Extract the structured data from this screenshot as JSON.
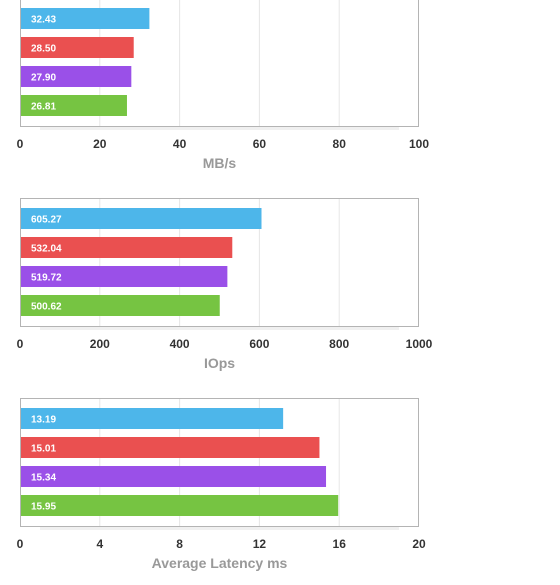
{
  "chart_data": [
    {
      "type": "bar",
      "orientation": "horizontal",
      "xlabel": "MB/s",
      "xlim": [
        0,
        100
      ],
      "xticks": [
        "0",
        "20",
        "40",
        "60",
        "80",
        "100"
      ],
      "grid": true,
      "values": [
        32.43,
        28.5,
        27.9,
        26.81
      ],
      "value_labels": [
        "32.43",
        "28.50",
        "27.90",
        "26.81"
      ],
      "colors": [
        "#4db6ea",
        "#ea5050",
        "#9a50e8",
        "#76c442"
      ]
    },
    {
      "type": "bar",
      "orientation": "horizontal",
      "xlabel": "IOps",
      "xlim": [
        0,
        1000
      ],
      "xticks": [
        "0",
        "200",
        "400",
        "600",
        "800",
        "1000"
      ],
      "grid": true,
      "values": [
        605.27,
        532.04,
        519.72,
        500.62
      ],
      "value_labels": [
        "605.27",
        "532.04",
        "519.72",
        "500.62"
      ],
      "colors": [
        "#4db6ea",
        "#ea5050",
        "#9a50e8",
        "#76c442"
      ]
    },
    {
      "type": "bar",
      "orientation": "horizontal",
      "xlabel": "Average Latency ms",
      "xlim": [
        0,
        20
      ],
      "xticks": [
        "0",
        "4",
        "8",
        "12",
        "16",
        "20"
      ],
      "grid": true,
      "values": [
        13.19,
        15.01,
        15.34,
        15.95
      ],
      "value_labels": [
        "13.19",
        "15.01",
        "15.34",
        "15.95"
      ],
      "colors": [
        "#4db6ea",
        "#ea5050",
        "#9a50e8",
        "#76c442"
      ]
    }
  ]
}
